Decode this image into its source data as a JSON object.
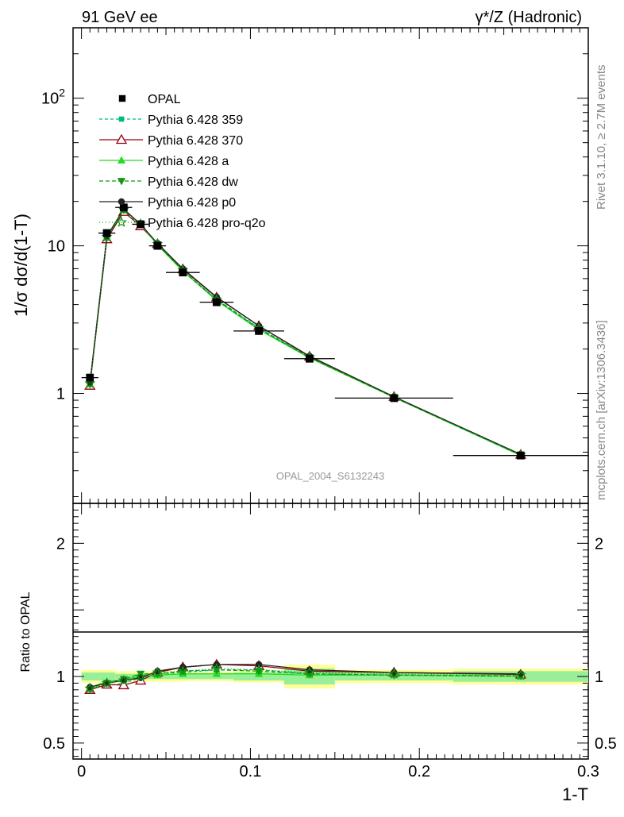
{
  "header": {
    "left": "91 GeV ee",
    "right": "γ*/Z (Hadronic)"
  },
  "side_labels": {
    "rivet": "Rivet 3.1.10, ≥ 2.7M events",
    "mcplots": "mcplots.cern.ch [arXiv:1306.3436]"
  },
  "analysis_id": "OPAL_2004_S6132243",
  "chart_data": [
    {
      "type": "line",
      "panel": "main",
      "ylabel": "1/σ dσ/d(1-T)",
      "yscale": "log",
      "ylim": [
        0.18,
        300
      ],
      "xlim": [
        -0.005,
        0.3
      ],
      "y_ticks": [
        {
          "value": 1,
          "label": "1"
        },
        {
          "value": 10,
          "label": "10"
        },
        {
          "value": 100,
          "label": "10^2"
        }
      ],
      "x": [
        0.005,
        0.015,
        0.025,
        0.035,
        0.045,
        0.06,
        0.08,
        0.105,
        0.135,
        0.185,
        0.26
      ],
      "data": {
        "name": "OPAL",
        "values": [
          1.28,
          12.2,
          18.2,
          14.0,
          10.0,
          6.6,
          4.15,
          2.65,
          1.72,
          0.93,
          0.38
        ],
        "x_err": [
          0.005,
          0.005,
          0.005,
          0.005,
          0.005,
          0.01,
          0.01,
          0.015,
          0.015,
          0.035,
          0.04
        ]
      },
      "series": [
        {
          "name": "Pythia 6.428 359",
          "color": "#00bb77",
          "dash": "4,3",
          "marker": "square-small",
          "values": [
            1.17,
            11.4,
            17.3,
            13.9,
            10.2,
            6.8,
            4.35,
            2.78,
            1.76,
            0.94,
            0.38
          ]
        },
        {
          "name": "Pythia 6.428 370",
          "color": "#990011",
          "dash": "",
          "marker": "triangle-open",
          "values": [
            1.13,
            11.1,
            17.0,
            13.6,
            10.3,
            6.95,
            4.48,
            2.87,
            1.78,
            0.95,
            0.385
          ]
        },
        {
          "name": "Pythia 6.428 a",
          "color": "#22dd22",
          "dash": "",
          "marker": "triangle",
          "values": [
            1.16,
            11.5,
            17.6,
            14.0,
            10.1,
            6.75,
            4.25,
            2.7,
            1.74,
            0.94,
            0.38
          ]
        },
        {
          "name": "Pythia 6.428 dw",
          "color": "#119911",
          "dash": "5,3",
          "marker": "triangle-down",
          "values": [
            1.15,
            11.3,
            17.5,
            14.1,
            10.2,
            6.8,
            4.3,
            2.75,
            1.75,
            0.94,
            0.382
          ]
        },
        {
          "name": "Pythia 6.428 p0",
          "color": "#222222",
          "dash": "",
          "marker": "circle",
          "values": [
            1.18,
            11.6,
            17.8,
            14.0,
            10.4,
            7.0,
            4.5,
            2.87,
            1.79,
            0.95,
            0.387
          ]
        },
        {
          "name": "Pythia 6.428 pro-q2o",
          "color": "#119911",
          "dash": "1,3",
          "marker": "star",
          "values": [
            1.17,
            11.5,
            17.6,
            14.1,
            10.3,
            6.85,
            4.32,
            2.76,
            1.76,
            0.94,
            0.383
          ]
        }
      ]
    },
    {
      "type": "line",
      "panel": "ratio",
      "ylabel": "Ratio to OPAL",
      "xlabel": "1-T",
      "ylim": [
        0.38,
        2.3
      ],
      "xlim": [
        -0.005,
        0.3
      ],
      "y_ticks": [
        {
          "value": 0.5,
          "label": "0.5"
        },
        {
          "value": 1,
          "label": "1"
        },
        {
          "value": 2,
          "label": "2"
        }
      ],
      "x_ticks": [
        {
          "value": 0,
          "label": "0"
        },
        {
          "value": 0.1,
          "label": "0.1"
        },
        {
          "value": 0.2,
          "label": "0.2"
        },
        {
          "value": 0.3,
          "label": "0.3"
        }
      ],
      "uncertainty_bins": [
        {
          "lo": 0.0,
          "hi": 0.02,
          "stat": 0.03,
          "total": 0.05
        },
        {
          "lo": 0.02,
          "hi": 0.06,
          "stat": 0.02,
          "total": 0.04
        },
        {
          "lo": 0.06,
          "hi": 0.09,
          "stat": 0.02,
          "total": 0.035
        },
        {
          "lo": 0.09,
          "hi": 0.12,
          "stat": 0.03,
          "total": 0.045
        },
        {
          "lo": 0.12,
          "hi": 0.15,
          "stat": 0.06,
          "total": 0.09
        },
        {
          "lo": 0.15,
          "hi": 0.22,
          "stat": 0.03,
          "total": 0.05
        },
        {
          "lo": 0.22,
          "hi": 0.3,
          "stat": 0.04,
          "total": 0.06
        }
      ],
      "series": [
        {
          "name": "Pythia 6.428 359",
          "values": [
            0.91,
            0.93,
            0.95,
            0.99,
            1.02,
            1.03,
            1.05,
            1.05,
            1.02,
            1.01,
            1.0
          ]
        },
        {
          "name": "Pythia 6.428 370",
          "values": [
            0.9,
            0.94,
            0.935,
            0.97,
            1.03,
            1.07,
            1.09,
            1.08,
            1.04,
            1.03,
            1.015
          ]
        },
        {
          "name": "Pythia 6.428 a",
          "values": [
            0.92,
            0.96,
            0.98,
            1.0,
            1.01,
            1.02,
            1.02,
            1.02,
            1.01,
            1.01,
            1.0
          ]
        },
        {
          "name": "Pythia 6.428 dw",
          "values": [
            0.9,
            0.95,
            0.98,
            1.02,
            1.02,
            1.04,
            1.05,
            1.04,
            1.02,
            1.01,
            1.005
          ]
        },
        {
          "name": "Pythia 6.428 p0",
          "values": [
            0.92,
            0.95,
            0.97,
            0.99,
            1.04,
            1.07,
            1.09,
            1.09,
            1.05,
            1.03,
            1.02
          ]
        },
        {
          "name": "Pythia 6.428 pro-q2o",
          "values": [
            0.91,
            0.95,
            0.97,
            1.0,
            1.03,
            1.04,
            1.06,
            1.05,
            1.03,
            1.02,
            1.01
          ]
        }
      ]
    }
  ]
}
